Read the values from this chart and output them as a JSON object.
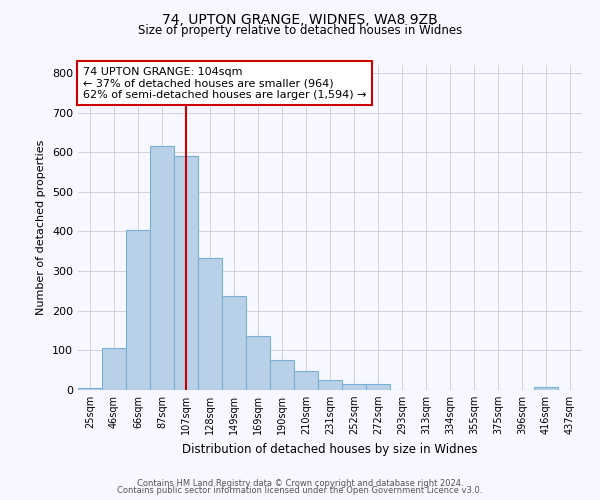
{
  "title": "74, UPTON GRANGE, WIDNES, WA8 9ZB",
  "subtitle": "Size of property relative to detached houses in Widnes",
  "xlabel": "Distribution of detached houses by size in Widnes",
  "ylabel": "Number of detached properties",
  "bar_labels": [
    "25sqm",
    "46sqm",
    "66sqm",
    "87sqm",
    "107sqm",
    "128sqm",
    "149sqm",
    "169sqm",
    "190sqm",
    "210sqm",
    "231sqm",
    "252sqm",
    "272sqm",
    "293sqm",
    "313sqm",
    "334sqm",
    "355sqm",
    "375sqm",
    "396sqm",
    "416sqm",
    "437sqm"
  ],
  "bar_values": [
    5,
    105,
    403,
    615,
    590,
    332,
    237,
    135,
    76,
    49,
    25,
    14,
    15,
    0,
    0,
    0,
    0,
    0,
    0,
    8,
    0
  ],
  "bar_color": "#b8d0e8",
  "bar_edge_color": "#7aafd4",
  "vline_x": 4,
  "vline_color": "#cc0000",
  "annotation_line1": "74 UPTON GRANGE: 104sqm",
  "annotation_line2": "← 37% of detached houses are smaller (964)",
  "annotation_line3": "62% of semi-detached houses are larger (1,594) →",
  "annotation_box_color": "white",
  "annotation_box_edge": "#cc0000",
  "ylim": [
    0,
    820
  ],
  "yticks": [
    0,
    100,
    200,
    300,
    400,
    500,
    600,
    700,
    800
  ],
  "footer1": "Contains HM Land Registry data © Crown copyright and database right 2024.",
  "footer2": "Contains public sector information licensed under the Open Government Licence v3.0.",
  "bg_color": "#f7f7ff",
  "grid_color": "#d0d0d8"
}
